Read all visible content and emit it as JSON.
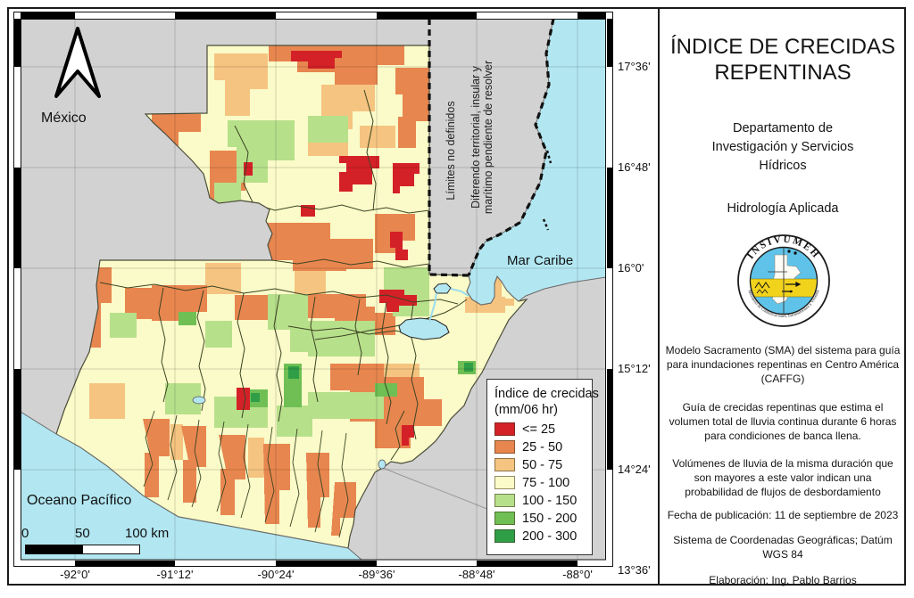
{
  "panel": {
    "title_lines": [
      "ÍNDICE DE CRECIDAS",
      "REPENTINAS"
    ],
    "department_lines": [
      "Departamento de",
      "Investigación y Servicios",
      "Hídricos"
    ],
    "unit": "Hidrología Aplicada",
    "logo_top": "INSIVUMEH",
    "logo_bottom": "Ministerio de Comunicaciones, Infraestructura y Vivienda",
    "para_model_lines": [
      "Modelo Sacramento (SMA) del sistema para guía",
      "para inundaciones repentinas en Centro América",
      "(CAFFG)"
    ],
    "para_guide_lines": [
      "Guía de crecidas repentinas que estima el",
      "volumen total de lluvia continua durante 6 horas",
      "para condiciones de banca llena."
    ],
    "para_volumes_lines": [
      "Volúmenes de lluvia de la misma duración que",
      "son mayores a este valor indican una",
      "probabilidad de flujos de desbordamiento"
    ],
    "pub_date": "Fecha de publicación: 11 de septiembre de 2023",
    "crs_lines": [
      "Sistema de Coordenadas Geográficas; Datúm",
      "WGS 84"
    ],
    "author": "Elaboración: Ing. Pablo Barrios"
  },
  "map": {
    "labels": {
      "mexico": "México",
      "caribbean": "Mar Caribe",
      "pacific": "Oceano Pacífico"
    },
    "belize_note": {
      "line1": "Límites no definidos",
      "line2": "Diferendo  territorial,  insular  y",
      "line3": "marítimo pendiente de resolver"
    },
    "scalebar": {
      "t0": "0",
      "t50": "50",
      "t100": "100 km"
    },
    "x_axis": [
      "-92°0'",
      "-91°12'",
      "-90°24'",
      "-89°36'",
      "-88°48'",
      "-88°0'"
    ],
    "y_axis": [
      "17°36'",
      "16°48'",
      "16°0'",
      "15°12'",
      "14°24'",
      "13°36'"
    ],
    "colors": {
      "sea": "#b2e7f2",
      "land_other": "#d2d2d2",
      "base": "#fafbc8"
    }
  },
  "legend": {
    "title_line1": "Índice de crecidas",
    "title_line2": "(mm/06 hr)",
    "items": [
      {
        "label": "<= 25",
        "color": "#d42127"
      },
      {
        "label": "25 - 50",
        "color": "#e8864f"
      },
      {
        "label": "50 - 75",
        "color": "#f5c480"
      },
      {
        "label": "75 - 100",
        "color": "#fafbc8"
      },
      {
        "label": "100 - 150",
        "color": "#b7e08b"
      },
      {
        "label": "150 - 200",
        "color": "#6fbf54"
      },
      {
        "label": "200 - 300",
        "color": "#2f9e47"
      }
    ]
  }
}
